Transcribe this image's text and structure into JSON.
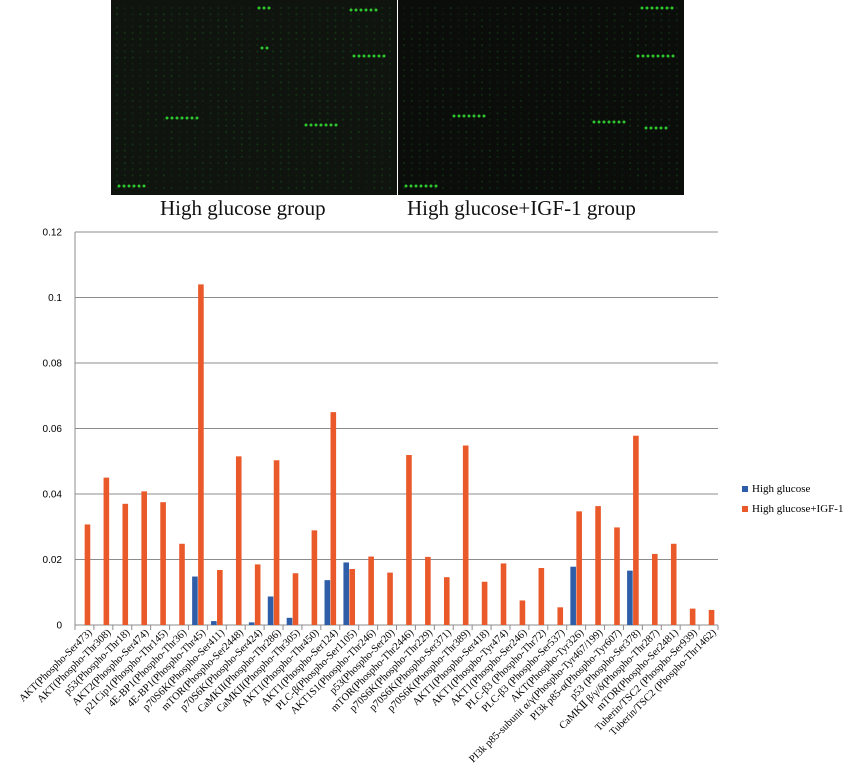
{
  "figure": {
    "panel_captions": [
      "High glucose group",
      "High glucose+IGF-1 group"
    ],
    "colors": {
      "array_background_a": "#0f140f",
      "array_background_b": "#0b0d0b",
      "array_spot": "#2fd22f"
    }
  },
  "chart_data": {
    "type": "bar",
    "ylim": [
      0,
      0.12
    ],
    "yticks": [
      "0",
      "0.02",
      "0.04",
      "0.06",
      "0.08",
      "0.1",
      "0.12"
    ],
    "grid": true,
    "legend_position": "right",
    "categories": [
      "AKT(Phospho-Ser473)",
      "AKT(Phospho-Thr308)",
      "p53(Phospho-Thr18)",
      "AKT2(Phospho-Ser474)",
      "p21Cip1(Phospho-Thr145)",
      "4E-BP1(Phospho-Thr36)",
      "4E-BP1(Phospho-Thr45)",
      "p70S6K(Phospho-Ser411)",
      "mTOR(Phospho-Ser2448)",
      "p70S6K(Phospho-Ser424)",
      "CaMKII(Phospho-Thr286)",
      "CaMKII(Phospho-Thr305)",
      "AKT1(Phospho-Thr450)",
      "AKT1(Phospho-Ser124)",
      "PLC-β(Phospho-Ser1105)",
      "AKT1S1(Phospho-Thr246)",
      "p53(Phospho-Ser20)",
      "mTOR(Phospho-Thr2446)",
      "p70S6K(Phospho-Thr229)",
      "p70S6K(Phospho-Ser371)",
      "p70S6K(Phospho-Thr389)",
      "AKT1(Phospho-Ser418)",
      "AKT1(Phospho-Tyr474)",
      "AKT1(Phospho-Ser246)",
      "PLC-β3 (Phospho-Thr72)",
      "PLC-β3 (Phospho-Ser537)",
      "AKT(Phospho-Tyr326)",
      "PI3k p85-subunit α/γ(Phospho-Tyr467/199)",
      "PI3k p85-α(Phospho-Tyr607)",
      "p53 (Phospho-Ser378)",
      "CaMKⅡ β/γ/δ(Phospho-Thr287)",
      "mTOR(Phospho-Ser2481)",
      "Tuberin/TSC2 (Phospho-Ser939)",
      "Tuberin/TSC2 (Phospho-Thr1462)"
    ],
    "series": [
      {
        "name": "High glucose",
        "color": "#2e5ea8",
        "values": [
          0,
          0,
          0,
          0,
          0,
          0,
          0.0148,
          0.0012,
          0,
          0.0008,
          0.0087,
          0.0022,
          0,
          0.0137,
          0.0191,
          0,
          0,
          0,
          0,
          0,
          0,
          0,
          0,
          0,
          0,
          0,
          0.0178,
          0,
          0,
          0.0166,
          0,
          0,
          0,
          0
        ]
      },
      {
        "name": "High glucose+IGF-1",
        "color": "#e9592a",
        "values": [
          0.0307,
          0.045,
          0.037,
          0.0408,
          0.0375,
          0.0248,
          0.104,
          0.0168,
          0.0515,
          0.0185,
          0.0503,
          0.0158,
          0.0289,
          0.065,
          0.0171,
          0.0209,
          0.016,
          0.0519,
          0.0208,
          0.0146,
          0.0548,
          0.0132,
          0.0188,
          0.0075,
          0.0174,
          0.0054,
          0.0347,
          0.0363,
          0.0298,
          0.0578,
          0.0217,
          0.0248,
          0.005,
          0.0046
        ]
      }
    ]
  }
}
